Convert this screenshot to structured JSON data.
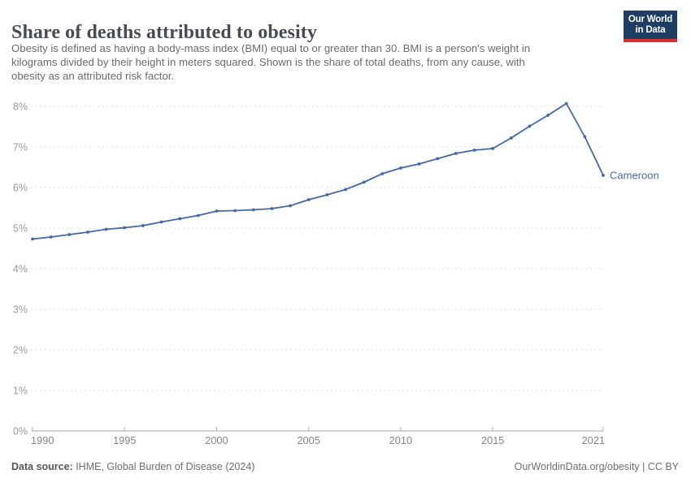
{
  "header": {
    "title": "Share of deaths attributed to obesity",
    "subtitle_lines": [
      "Obesity is defined as having a body-mass index (BMI) equal to or greater than 30. BMI is a person's weight in",
      "kilograms divided by their height in meters squared. Shown is the share of total deaths, from any cause, with",
      "obesity as an attributed risk factor."
    ],
    "logo": {
      "line1": "Our World",
      "line2": "in Data",
      "bg_color": "#1d3d63",
      "stripe_color": "#d8352e"
    }
  },
  "footer": {
    "source_label": "Data source:",
    "source_text": " IHME, Global Burden of Disease (2024)",
    "credit": "OurWorldinData.org/obesity | CC BY"
  },
  "chart_data": {
    "type": "line",
    "title": "Share of deaths attributed to obesity",
    "xlabel": "",
    "ylabel": "",
    "x": [
      1990,
      1991,
      1992,
      1993,
      1994,
      1995,
      1996,
      1997,
      1998,
      1999,
      2000,
      2001,
      2002,
      2003,
      2004,
      2005,
      2006,
      2007,
      2008,
      2009,
      2010,
      2011,
      2012,
      2013,
      2014,
      2015,
      2016,
      2017,
      2018,
      2019,
      2020,
      2021
    ],
    "series": [
      {
        "name": "Cameroon",
        "values": [
          4.73,
          4.78,
          4.84,
          4.9,
          4.97,
          5.01,
          5.06,
          5.15,
          5.23,
          5.31,
          5.42,
          5.43,
          5.45,
          5.48,
          5.55,
          5.7,
          5.82,
          5.95,
          6.13,
          6.34,
          6.48,
          6.58,
          6.71,
          6.84,
          6.92,
          6.96,
          7.22,
          7.51,
          7.78,
          8.07,
          7.25,
          6.3
        ]
      }
    ],
    "ylim": [
      0,
      8
    ],
    "y_ticks": [
      0,
      1,
      2,
      3,
      4,
      5,
      6,
      7,
      8
    ],
    "y_tick_suffix": "%",
    "x_ticks": [
      1990,
      1995,
      2000,
      2005,
      2010,
      2015,
      2021
    ],
    "grid": true,
    "legend_position": "end-of-line-label",
    "line_color": "#4467a5",
    "entity_label_color": "#4a69a8",
    "grid_color": "#dcdcdc",
    "axis_color": "#a9a9a9",
    "y_label_color": "#9b9b9b",
    "x_label_color": "#858585"
  }
}
